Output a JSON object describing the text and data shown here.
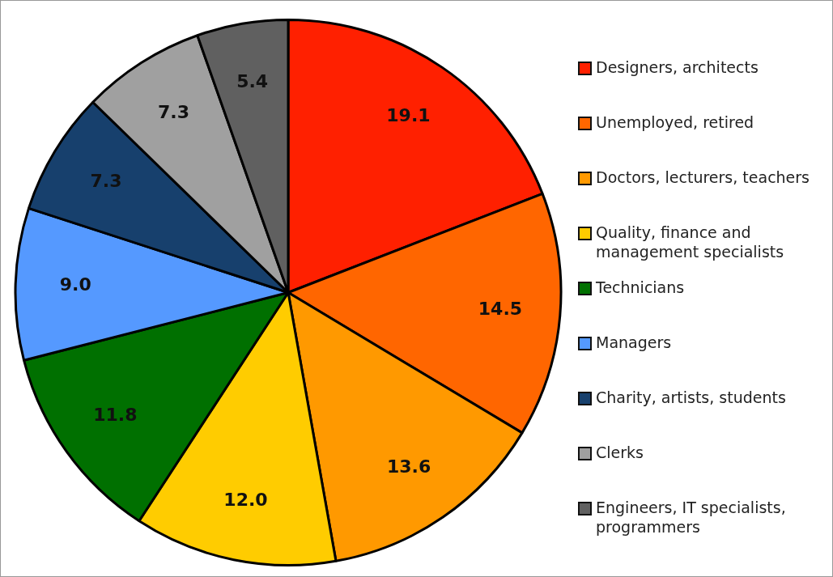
{
  "chart_data": {
    "type": "pie",
    "categories": [
      "Designers, architects",
      "Unemployed, retired",
      "Doctors, lecturers, teachers",
      "Quality, finance and management specialists",
      "Technicians",
      "Managers",
      "Charity, artists, students",
      "Clerks",
      "Engineers, IT specialists, programmers"
    ],
    "values": [
      19.1,
      14.5,
      13.6,
      12.0,
      11.8,
      9.0,
      7.3,
      7.3,
      5.4
    ],
    "value_labels": [
      "19.1",
      "14.5",
      "13.6",
      "12.0",
      "11.8",
      "9.0",
      "7.3",
      "7.3",
      "5.4"
    ],
    "colors": [
      "#ff2000",
      "#ff6600",
      "#ff9900",
      "#ffcc00",
      "#007000",
      "#5599ff",
      "#17406d",
      "#a0a0a0",
      "#606060"
    ],
    "legend": "right"
  }
}
